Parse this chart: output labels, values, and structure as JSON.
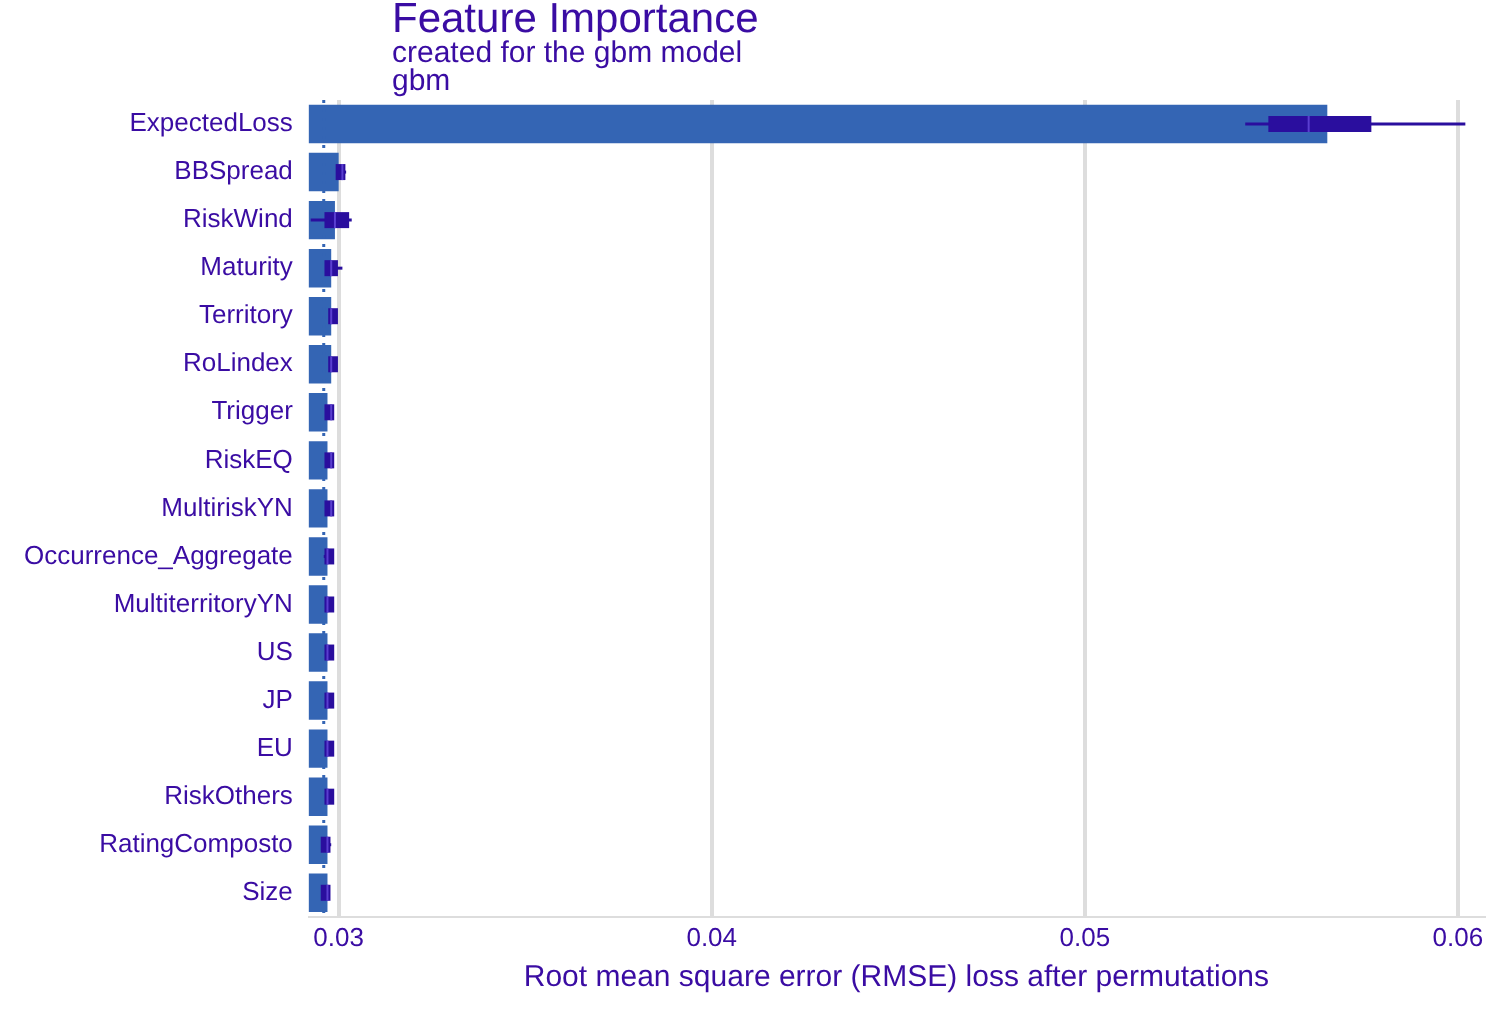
{
  "chart_data": {
    "type": "bar",
    "orientation": "horizontal",
    "title": "Feature Importance",
    "subtitle": "created for the gbm model",
    "annotations": [
      "gbm"
    ],
    "xlabel": "Root mean square error (RMSE) loss after permutations",
    "categories": [
      "ExpectedLoss",
      "BBSpread",
      "RiskWind",
      "Maturity",
      "Territory",
      "RoLindex",
      "Trigger",
      "RiskEQ",
      "MultiriskYN",
      "Occurrence_Aggregate",
      "MultiterritoryYN",
      "US",
      "JP",
      "EU",
      "RiskOthers",
      "RatingComposto",
      "Size"
    ],
    "series": [
      {
        "type": "bar",
        "color": "#3465b4",
        "values": [
          0.0565,
          0.03,
          0.0299,
          0.0298,
          0.0298,
          0.0298,
          0.0297,
          0.0297,
          0.0297,
          0.0297,
          0.0297,
          0.0297,
          0.0297,
          0.0297,
          0.0297,
          0.0297,
          0.0297
        ]
      },
      {
        "type": "box",
        "color": "#2a0e9e",
        "boxes": [
          {
            "low": 0.0543,
            "q1": 0.055,
            "median": 0.056,
            "q3": 0.0576,
            "high": 0.0602
          },
          {
            "low": 0.03,
            "q1": 0.03,
            "median": 0.0301,
            "q3": 0.0301,
            "high": 0.0302
          },
          {
            "low": 0.02925,
            "q1": 0.0297,
            "median": 0.0299,
            "q3": 0.0302,
            "high": 0.03035
          },
          {
            "low": 0.0297,
            "q1": 0.0297,
            "median": 0.0298,
            "q3": 0.0299,
            "high": 0.0301
          },
          {
            "low": 0.0298,
            "q1": 0.0298,
            "median": 0.0298,
            "q3": 0.0299,
            "high": 0.0299
          },
          {
            "low": 0.0298,
            "q1": 0.0298,
            "median": 0.0298,
            "q3": 0.0299,
            "high": 0.0299
          },
          {
            "low": 0.0297,
            "q1": 0.0297,
            "median": 0.0298,
            "q3": 0.0298,
            "high": 0.0298
          },
          {
            "low": 0.0297,
            "q1": 0.0297,
            "median": 0.0298,
            "q3": 0.0298,
            "high": 0.0298
          },
          {
            "low": 0.0297,
            "q1": 0.0297,
            "median": 0.0298,
            "q3": 0.0298,
            "high": 0.0298
          },
          {
            "low": 0.0296,
            "q1": 0.0297,
            "median": 0.0297,
            "q3": 0.0298,
            "high": 0.0298
          },
          {
            "low": 0.0297,
            "q1": 0.0297,
            "median": 0.0297,
            "q3": 0.0298,
            "high": 0.0298
          },
          {
            "low": 0.0297,
            "q1": 0.0297,
            "median": 0.0297,
            "q3": 0.0298,
            "high": 0.0298
          },
          {
            "low": 0.0297,
            "q1": 0.0297,
            "median": 0.0297,
            "q3": 0.0298,
            "high": 0.0298
          },
          {
            "low": 0.0297,
            "q1": 0.0297,
            "median": 0.0297,
            "q3": 0.0298,
            "high": 0.0298
          },
          {
            "low": 0.0297,
            "q1": 0.0297,
            "median": 0.0297,
            "q3": 0.0298,
            "high": 0.0298
          },
          {
            "low": 0.0296,
            "q1": 0.0296,
            "median": 0.0297,
            "q3": 0.0297,
            "high": 0.0298
          },
          {
            "low": 0.0296,
            "q1": 0.0296,
            "median": 0.0297,
            "q3": 0.0297,
            "high": 0.0297
          }
        ]
      }
    ],
    "xlim": [
      0.0292,
      0.0607
    ],
    "xticks": [
      0.03,
      0.04,
      0.05,
      0.06
    ],
    "grid": "x",
    "legend": false,
    "ref_lines": [
      {
        "axis": "x",
        "value": 0.0296,
        "color": "#3465b4",
        "line_style": "dotted"
      }
    ]
  }
}
